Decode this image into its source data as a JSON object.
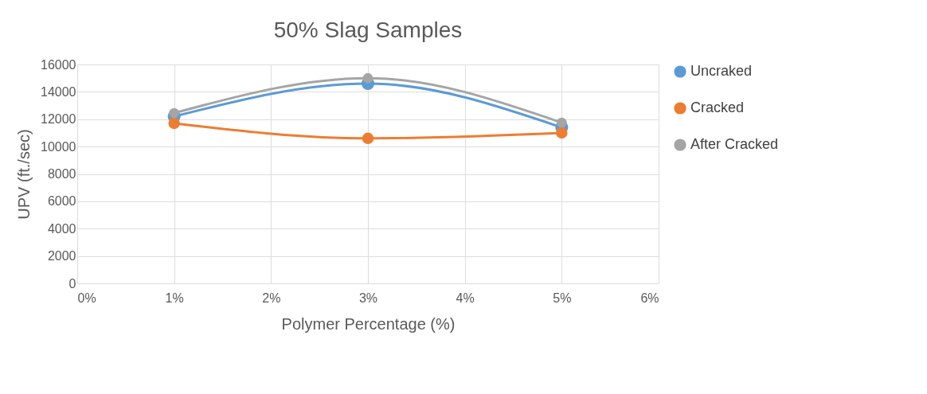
{
  "chart_data": {
    "type": "line",
    "title": "50% Slag Samples",
    "xlabel": "Polymer Percentage (%)",
    "ylabel": "UPV (ft./sec)",
    "x": [
      1,
      3,
      5
    ],
    "series": [
      {
        "name": "Uncraked",
        "color": "#5b9bd5",
        "values": [
          12200,
          14600,
          11400
        ]
      },
      {
        "name": "Cracked",
        "color": "#ed7d31",
        "values": [
          11700,
          10600,
          11000
        ]
      },
      {
        "name": "After Cracked",
        "color": "#a5a5a5",
        "values": [
          12450,
          15000,
          11750
        ]
      }
    ],
    "xlim": [
      0,
      6
    ],
    "xticks": [
      {
        "value": 0,
        "label": "0%"
      },
      {
        "value": 1,
        "label": "1%"
      },
      {
        "value": 2,
        "label": "2%"
      },
      {
        "value": 3,
        "label": "3%"
      },
      {
        "value": 4,
        "label": "4%"
      },
      {
        "value": 5,
        "label": "5%"
      },
      {
        "value": 6,
        "label": "6%"
      }
    ],
    "ylim": [
      0,
      16000
    ],
    "yticks": [
      0,
      2000,
      4000,
      6000,
      8000,
      10000,
      12000,
      14000,
      16000
    ],
    "grid": true,
    "legend": "right",
    "marker": "circle",
    "line_style": "solid"
  }
}
